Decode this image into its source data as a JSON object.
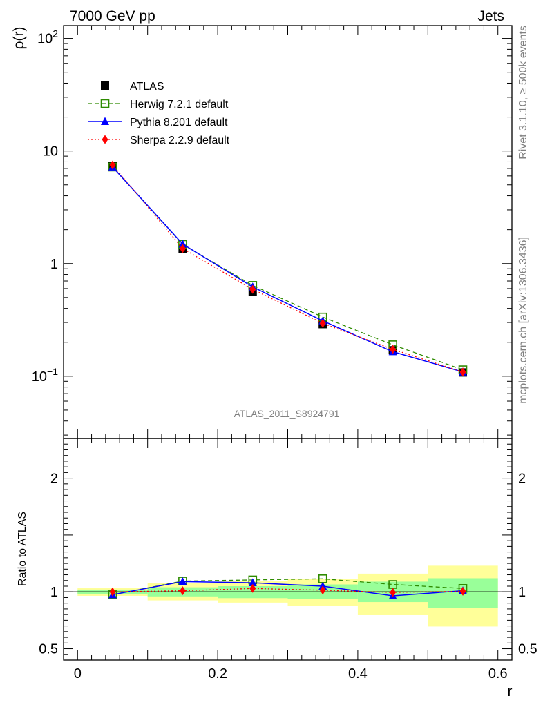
{
  "header": {
    "left_title": "7000 GeV pp",
    "right_title": "Jets"
  },
  "side_labels": {
    "rivet": "Rivet 3.1.10, ≥ 500k events",
    "mcplots": "mcplots.cern.ch [arXiv:1306.3436]"
  },
  "watermark": "ATLAS_2011_S8924791",
  "chart_data": {
    "type": "line",
    "x": [
      0.05,
      0.15,
      0.25,
      0.35,
      0.45,
      0.55
    ],
    "x_bins": [
      [
        0.0,
        0.1
      ],
      [
        0.1,
        0.2
      ],
      [
        0.2,
        0.3
      ],
      [
        0.3,
        0.4
      ],
      [
        0.4,
        0.5
      ],
      [
        0.5,
        0.6
      ]
    ],
    "xlabel": "r",
    "xlim": [
      -0.02,
      0.62
    ],
    "x_ticks": [
      {
        "v": 0,
        "label": "0"
      },
      {
        "v": 0.2,
        "label": "0.2"
      },
      {
        "v": 0.4,
        "label": "0.4"
      },
      {
        "v": 0.6,
        "label": "0.6"
      }
    ],
    "main": {
      "ylabel": "ρ(r)",
      "yscale": "log",
      "ylim": [
        0.028,
        130
      ],
      "y_ticks": [
        {
          "v": 100,
          "base": "10",
          "exp": "2"
        },
        {
          "v": 10,
          "base": "10",
          "exp": ""
        },
        {
          "v": 1,
          "base": "1",
          "exp": ""
        },
        {
          "v": 0.1,
          "base": "10",
          "exp": "−1"
        }
      ],
      "series": [
        {
          "name": "ATLAS",
          "color": "#000000",
          "marker": "square-filled",
          "line": "none",
          "values": [
            7.4,
            1.35,
            0.56,
            0.29,
            0.17,
            0.108
          ]
        },
        {
          "name": "Herwig 7.2.1 default",
          "color": "#2e8b00",
          "marker": "square-open",
          "line": "dashed",
          "values": [
            7.2,
            1.48,
            0.64,
            0.335,
            0.19,
            0.114
          ]
        },
        {
          "name": "Pythia 8.201 default",
          "color": "#0000ff",
          "marker": "triangle-filled",
          "line": "solid",
          "values": [
            7.2,
            1.49,
            0.62,
            0.31,
            0.165,
            0.109
          ]
        },
        {
          "name": "Sherpa 2.2.9 default",
          "color": "#ff0000",
          "marker": "diamond-filled",
          "line": "dotted",
          "values": [
            7.5,
            1.36,
            0.59,
            0.295,
            0.173,
            0.109
          ]
        }
      ]
    },
    "ratio": {
      "ylabel": "Ratio to ATLAS",
      "ylim": [
        0.4,
        2.35
      ],
      "y_ticks": [
        {
          "v": 0.5,
          "label": "0.5"
        },
        {
          "v": 1,
          "label": "1"
        },
        {
          "v": 2,
          "label": "2"
        }
      ],
      "band_outer": [
        [
          0.965,
          1.035
        ],
        [
          0.925,
          1.08
        ],
        [
          0.905,
          1.095
        ],
        [
          0.875,
          1.115
        ],
        [
          0.795,
          1.16
        ],
        [
          0.695,
          1.23
        ]
      ],
      "band_inner": [
        [
          0.98,
          1.02
        ],
        [
          0.96,
          1.04
        ],
        [
          0.945,
          1.05
        ],
        [
          0.94,
          1.065
        ],
        [
          0.91,
          1.09
        ],
        [
          0.86,
          1.12
        ]
      ],
      "band_colors": {
        "outer": "#ffff99",
        "inner": "#99ff99"
      },
      "series": [
        {
          "name": "Herwig 7.2.1 default",
          "color": "#2e8b00",
          "marker": "square-open",
          "line": "dashed",
          "values": [
            0.975,
            1.095,
            1.105,
            1.115,
            1.065,
            1.03
          ]
        },
        {
          "name": "Pythia 8.201 default",
          "color": "#0000ff",
          "marker": "triangle-filled",
          "line": "solid",
          "values": [
            0.975,
            1.09,
            1.08,
            1.05,
            0.965,
            1.01
          ]
        },
        {
          "name": "Sherpa 2.2.9 default",
          "color": "#ff0000",
          "marker": "diamond-filled",
          "line": "dotted",
          "values": [
            1.0,
            1.01,
            1.03,
            1.015,
            0.995,
            1.005
          ]
        }
      ]
    }
  }
}
